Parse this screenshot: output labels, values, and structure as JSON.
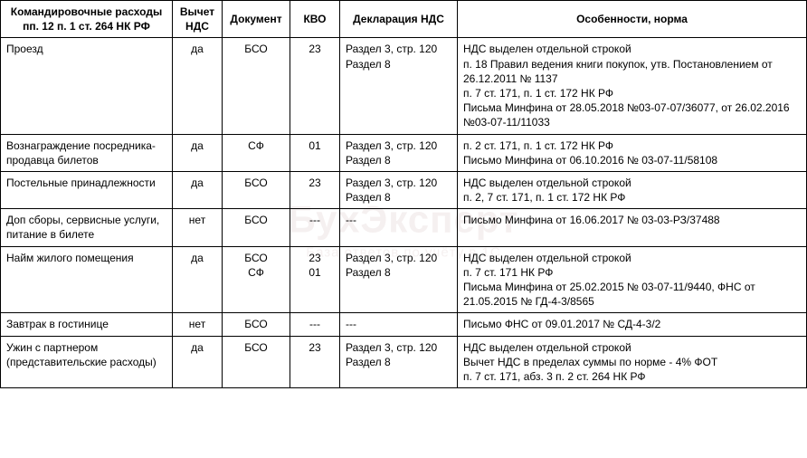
{
  "watermark": {
    "title": "БухЭксперт",
    "subtitle": "База ответов по учёту в 1С"
  },
  "table": {
    "headers": {
      "c1": "Командировочные расходы пп. 12 п. 1 ст. 264 НК РФ",
      "c2": "Вычет НДС",
      "c3": "Документ",
      "c4": "КВО",
      "c5": "Декларация НДС",
      "c6": "Особенности, норма"
    },
    "rows": [
      {
        "c1": "Проезд",
        "c2": "да",
        "c3": "БСО",
        "c4": "23",
        "c5": "Раздел 3, стр. 120\nРаздел 8",
        "c6": "НДС выделен отдельной строкой\nп. 18 Правил ведения книги покупок, утв. Постановлением от 26.12.2011 № 1137\nп. 7 ст. 171, п. 1 ст. 172 НК РФ\nПисьма Минфина от 28.05.2018 №03-07-07/36077, от 26.02.2016 №03-07-11/11033"
      },
      {
        "c1": "Вознаграждение посредника-продавца билетов",
        "c2": "да",
        "c3": "СФ",
        "c4": "01",
        "c5": "Раздел 3, стр. 120\nРаздел 8",
        "c6": "п. 2 ст. 171, п. 1 ст. 172 НК РФ\nПисьмо Минфина от 06.10.2016 № 03-07-11/58108"
      },
      {
        "c1": "Постельные принадлежности",
        "c2": "да",
        "c3": "БСО",
        "c4": "23",
        "c5": "Раздел 3, стр. 120\nРаздел 8",
        "c6": "НДС выделен отдельной строкой\nп. 2, 7 ст. 171, п. 1 ст. 172 НК РФ"
      },
      {
        "c1": "Доп сборы, сервисные услуги, питание в билете",
        "c2": "нет",
        "c3": "БСО",
        "c4": "---",
        "c5": "---",
        "c6": "Письмо Минфина от 16.06.2017 № 03-03-РЗ/37488"
      },
      {
        "c1": "Найм жилого помещения",
        "c2": "да",
        "c3": "БСО\nСФ",
        "c4": "23\n01",
        "c5": "Раздел 3, стр. 120\nРаздел 8",
        "c6": "НДС выделен отдельной строкой\nп. 7 ст. 171 НК РФ\nПисьма Минфина от 25.02.2015 № 03-07-11/9440, ФНС от 21.05.2015 № ГД-4-3/8565"
      },
      {
        "c1": "Завтрак в гостинице",
        "c2": "нет",
        "c3": "БСО",
        "c4": "---",
        "c5": "---",
        "c6": "Письмо ФНС от 09.01.2017 № СД-4-3/2"
      },
      {
        "c1": "Ужин с партнером (представительские расходы)",
        "c2": "да",
        "c3": "БСО",
        "c4": "23",
        "c5": "Раздел 3, стр. 120\nРаздел 8",
        "c6": "НДС выделен отдельной строкой\nВычет НДС в пределах суммы по норме - 4% ФОТ\nп. 7 ст. 171, абз. 3 п. 2 ст. 264 НК РФ"
      }
    ]
  }
}
